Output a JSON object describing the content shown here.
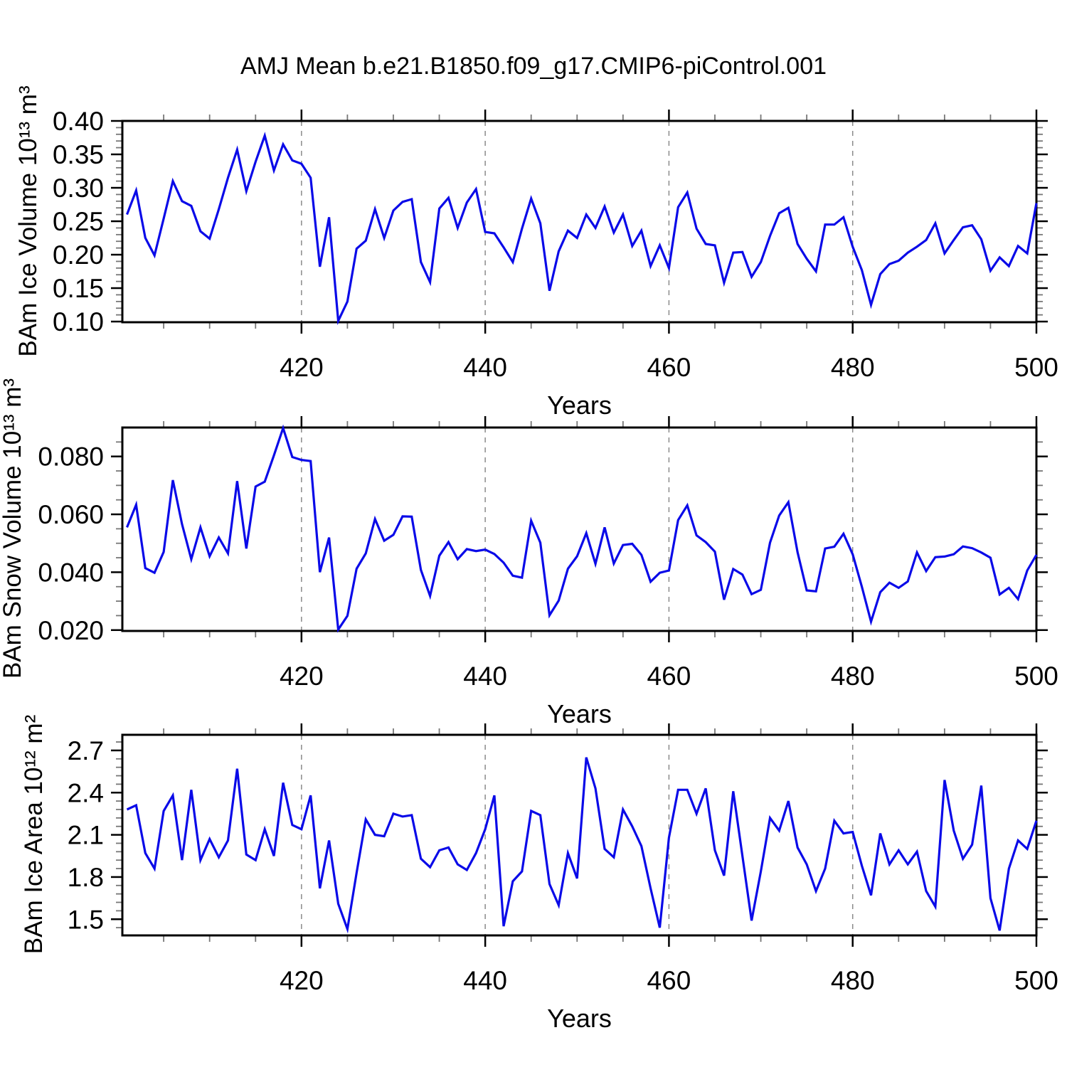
{
  "title": "AMJ Mean b.e21.B1850.f09_g17.CMIP6-piControl.001",
  "line_color": "#0a0ae8",
  "axis_color": "#000000",
  "grid_color": "#8a8a8a",
  "years": [
    401,
    402,
    403,
    404,
    405,
    406,
    407,
    408,
    409,
    410,
    411,
    412,
    413,
    414,
    415,
    416,
    417,
    418,
    419,
    420,
    421,
    422,
    423,
    424,
    425,
    426,
    427,
    428,
    429,
    430,
    431,
    432,
    433,
    434,
    435,
    436,
    437,
    438,
    439,
    440,
    441,
    442,
    443,
    444,
    445,
    446,
    447,
    448,
    449,
    450,
    451,
    452,
    453,
    454,
    455,
    456,
    457,
    458,
    459,
    460,
    461,
    462,
    463,
    464,
    465,
    466,
    467,
    468,
    469,
    470,
    471,
    472,
    473,
    474,
    475,
    476,
    477,
    478,
    479,
    480,
    481,
    482,
    483,
    484,
    485,
    486,
    487,
    488,
    489,
    490,
    491,
    492,
    493,
    494,
    495,
    496,
    497,
    498,
    499,
    500
  ],
  "chart_data": [
    {
      "type": "line",
      "name": "ice-volume",
      "ylabel": "BAm Ice Volume 10¹³ m³",
      "xlabel": "Years",
      "ylim": [
        0.099,
        0.4
      ],
      "xlim": [
        400.5,
        500
      ],
      "grid": "vertical-dashed",
      "gridlines": [
        420,
        440,
        460,
        480
      ],
      "yticks": [
        {
          "v": 0.1,
          "label": "0.10"
        },
        {
          "v": 0.15,
          "label": "0.15"
        },
        {
          "v": 0.2,
          "label": "0.20"
        },
        {
          "v": 0.25,
          "label": "0.25"
        },
        {
          "v": 0.3,
          "label": "0.30"
        },
        {
          "v": 0.35,
          "label": "0.35"
        },
        {
          "v": 0.4,
          "label": "0.40"
        }
      ],
      "yminor": {
        "start": 0.1,
        "step": 0.01,
        "end": 0.4
      },
      "xticks": [
        {
          "v": 420,
          "label": "420"
        },
        {
          "v": 440,
          "label": "440"
        },
        {
          "v": 460,
          "label": "460"
        },
        {
          "v": 480,
          "label": "480"
        },
        {
          "v": 500,
          "label": "500"
        }
      ],
      "xminor": {
        "start": 405,
        "step": 5,
        "end": 495
      },
      "values": [
        0.26,
        0.296,
        0.225,
        0.199,
        0.254,
        0.31,
        0.28,
        0.273,
        0.235,
        0.224,
        0.268,
        0.315,
        0.357,
        0.295,
        0.339,
        0.378,
        0.326,
        0.365,
        0.341,
        0.336,
        0.315,
        0.182,
        0.256,
        0.101,
        0.13,
        0.209,
        0.221,
        0.268,
        0.225,
        0.266,
        0.279,
        0.283,
        0.189,
        0.159,
        0.269,
        0.285,
        0.24,
        0.278,
        0.298,
        0.234,
        0.232,
        0.211,
        0.189,
        0.239,
        0.284,
        0.247,
        0.146,
        0.205,
        0.236,
        0.225,
        0.26,
        0.24,
        0.272,
        0.233,
        0.26,
        0.213,
        0.236,
        0.183,
        0.214,
        0.18,
        0.271,
        0.293,
        0.239,
        0.216,
        0.214,
        0.158,
        0.203,
        0.204,
        0.167,
        0.189,
        0.228,
        0.262,
        0.27,
        0.216,
        0.194,
        0.175,
        0.245,
        0.245,
        0.256,
        0.212,
        0.177,
        0.125,
        0.171,
        0.186,
        0.191,
        0.203,
        0.212,
        0.222,
        0.247,
        0.202,
        0.222,
        0.241,
        0.244,
        0.223,
        0.176,
        0.196,
        0.183,
        0.213,
        0.202,
        0.277
      ]
    },
    {
      "type": "line",
      "name": "snow-volume",
      "ylabel": "BAm Snow Volume 10¹³ m³",
      "xlabel": "Years",
      "ylim": [
        0.0197,
        0.09
      ],
      "xlim": [
        400.5,
        500
      ],
      "grid": "vertical-dashed",
      "gridlines": [
        420,
        440,
        460,
        480
      ],
      "yticks": [
        {
          "v": 0.02,
          "label": "0.020"
        },
        {
          "v": 0.04,
          "label": "0.040"
        },
        {
          "v": 0.06,
          "label": "0.060"
        },
        {
          "v": 0.08,
          "label": "0.080"
        }
      ],
      "yminor": {
        "start": 0.02,
        "step": 0.005,
        "end": 0.0895
      },
      "xticks": [
        {
          "v": 420,
          "label": "420"
        },
        {
          "v": 440,
          "label": "440"
        },
        {
          "v": 460,
          "label": "460"
        },
        {
          "v": 480,
          "label": "480"
        },
        {
          "v": 500,
          "label": "500"
        }
      ],
      "xminor": {
        "start": 405,
        "step": 5,
        "end": 495
      },
      "values": [
        0.0555,
        0.0633,
        0.0414,
        0.0398,
        0.047,
        0.0718,
        0.0566,
        0.0445,
        0.0555,
        0.0455,
        0.052,
        0.0465,
        0.0715,
        0.0482,
        0.0696,
        0.0713,
        0.0804,
        0.0898,
        0.0798,
        0.0788,
        0.0784,
        0.04,
        0.052,
        0.0202,
        0.0249,
        0.0412,
        0.0465,
        0.0584,
        0.0509,
        0.0529,
        0.0593,
        0.0592,
        0.0408,
        0.0318,
        0.0457,
        0.0504,
        0.0445,
        0.048,
        0.0473,
        0.0478,
        0.0463,
        0.0433,
        0.0388,
        0.0381,
        0.0578,
        0.0502,
        0.0251,
        0.0302,
        0.0412,
        0.0455,
        0.0535,
        0.0429,
        0.0555,
        0.043,
        0.0494,
        0.0498,
        0.046,
        0.0367,
        0.0398,
        0.0406,
        0.058,
        0.0631,
        0.0527,
        0.0504,
        0.0471,
        0.0305,
        0.0411,
        0.0392,
        0.0324,
        0.0339,
        0.0502,
        0.0596,
        0.0642,
        0.0469,
        0.0337,
        0.0334,
        0.0482,
        0.0488,
        0.0533,
        0.0462,
        0.035,
        0.0229,
        0.0331,
        0.0364,
        0.0346,
        0.0368,
        0.0468,
        0.0404,
        0.0452,
        0.0454,
        0.0462,
        0.0489,
        0.0483,
        0.0468,
        0.045,
        0.0323,
        0.0346,
        0.0307,
        0.0406,
        0.046
      ]
    },
    {
      "type": "line",
      "name": "ice-area",
      "ylabel": "BAm Ice Area 10¹² m²",
      "xlabel": "Years",
      "ylim": [
        1.385,
        2.811
      ],
      "xlim": [
        400.5,
        500
      ],
      "grid": "vertical-dashed",
      "gridlines": [
        420,
        440,
        460,
        480
      ],
      "yticks": [
        {
          "v": 1.5,
          "label": "1.5"
        },
        {
          "v": 1.8,
          "label": "1.8"
        },
        {
          "v": 2.1,
          "label": "2.1"
        },
        {
          "v": 2.4,
          "label": "2.4"
        },
        {
          "v": 2.7,
          "label": "2.7"
        }
      ],
      "yminor": {
        "start": 1.44,
        "step": 0.06,
        "end": 2.8
      },
      "xticks": [
        {
          "v": 420,
          "label": "420"
        },
        {
          "v": 440,
          "label": "440"
        },
        {
          "v": 460,
          "label": "460"
        },
        {
          "v": 480,
          "label": "480"
        },
        {
          "v": 500,
          "label": "500"
        }
      ],
      "xminor": {
        "start": 405,
        "step": 5,
        "end": 495
      },
      "values": [
        2.28,
        2.31,
        1.97,
        1.86,
        2.27,
        2.38,
        1.92,
        2.42,
        1.92,
        2.07,
        1.94,
        2.06,
        2.57,
        1.96,
        1.92,
        2.14,
        1.95,
        2.47,
        2.17,
        2.14,
        2.38,
        1.72,
        2.06,
        1.61,
        1.43,
        1.83,
        2.21,
        2.1,
        2.09,
        2.25,
        2.23,
        2.24,
        1.93,
        1.87,
        1.99,
        2.01,
        1.89,
        1.85,
        1.97,
        2.14,
        2.38,
        1.45,
        1.77,
        1.84,
        2.27,
        2.24,
        1.75,
        1.6,
        1.97,
        1.79,
        2.65,
        2.43,
        2.0,
        1.94,
        2.28,
        2.16,
        2.02,
        1.72,
        1.44,
        2.08,
        2.42,
        2.42,
        2.25,
        2.43,
        1.99,
        1.81,
        2.41,
        1.95,
        1.49,
        1.84,
        2.22,
        2.13,
        2.34,
        2.01,
        1.89,
        1.7,
        1.86,
        2.2,
        2.11,
        2.12,
        1.88,
        1.67,
        2.11,
        1.89,
        1.99,
        1.89,
        1.98,
        1.7,
        1.59,
        2.49,
        2.13,
        1.93,
        2.03,
        2.45,
        1.65,
        1.42,
        1.86,
        2.06,
        2.0,
        2.2
      ]
    }
  ]
}
